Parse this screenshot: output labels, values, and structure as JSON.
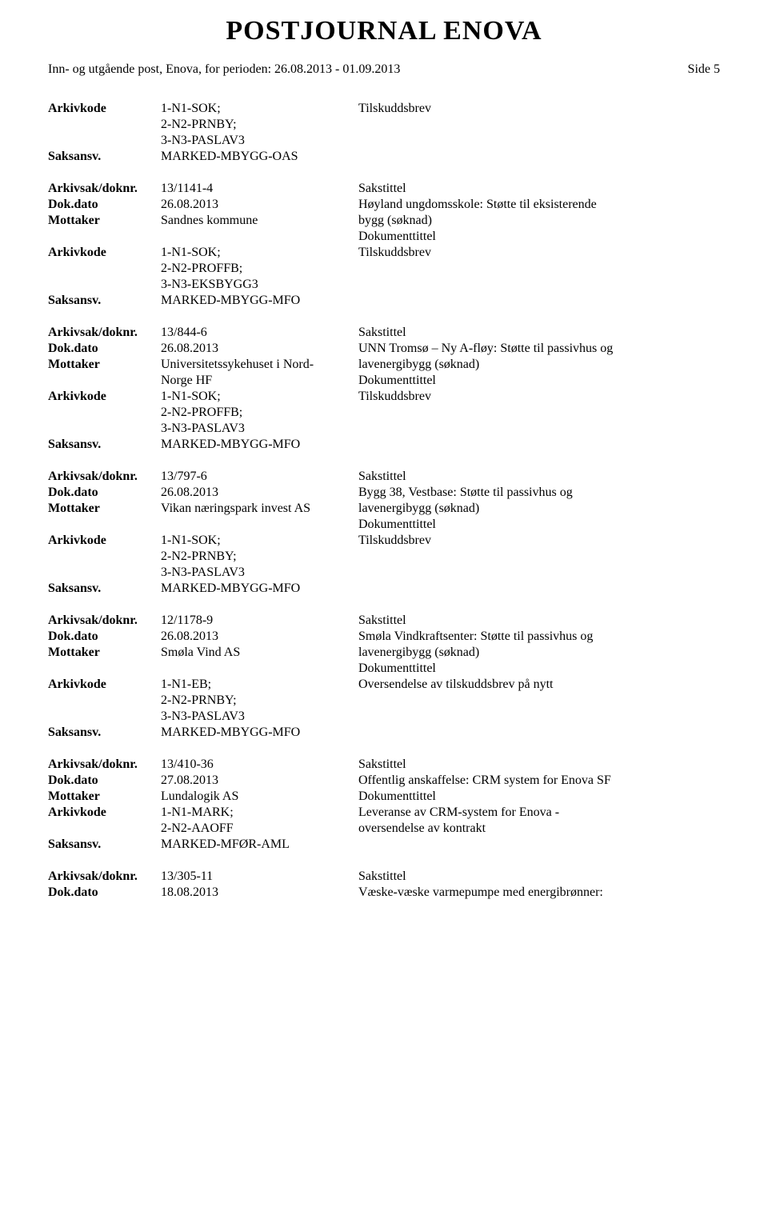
{
  "page_header": "POSTJOURNAL ENOVA",
  "period_line": "Inn- og utgående post, Enova, for perioden: 26.08.2013 - 01.09.2013",
  "side_label": "Side 5",
  "labels": {
    "arkivkode": "Arkivkode",
    "saksansv": "Saksansv.",
    "arkivsak": "Arkivsak/doknr.",
    "dokdato": "Dok.dato",
    "mottaker": "Mottaker",
    "sakstittel": "Sakstittel",
    "dokumenttittel": "Dokumenttittel"
  },
  "lead": {
    "arkivkode": "1-N1-SOK;\n2-N2-PRNBY;\n3-N3-PASLAV3",
    "doc_title": "Tilskuddsbrev",
    "saksansv": "MARKED-MBYGG-OAS"
  },
  "records": [
    {
      "arkivsak": "13/1141-4",
      "dokdato": "26.08.2013",
      "mottaker": "Sandnes kommune",
      "sakstittel_lines": [
        "Høyland ungdomsskole: Støtte til eksisterende",
        "bygg (søknad)"
      ],
      "arkivkode": "1-N1-SOK;\n2-N2-PROFFB;\n3-N3-EKSBYGG3",
      "doc_title": "Tilskuddsbrev",
      "saksansv": "MARKED-MBYGG-MFO"
    },
    {
      "arkivsak": "13/844-6",
      "dokdato": "26.08.2013",
      "mottaker": "Universitetssykehuset i Nord-\nNorge HF",
      "sakstittel_lines": [
        "UNN Tromsø – Ny A-fløy: Støtte til passivhus og",
        "lavenergibygg (søknad)"
      ],
      "arkivkode": "1-N1-SOK;\n2-N2-PROFFB;\n3-N3-PASLAV3",
      "doc_title": "Tilskuddsbrev",
      "saksansv": "MARKED-MBYGG-MFO"
    },
    {
      "arkivsak": "13/797-6",
      "dokdato": "26.08.2013",
      "mottaker": "Vikan næringspark invest AS",
      "sakstittel_lines": [
        "Bygg 38, Vestbase: Støtte til passivhus og",
        "lavenergibygg (søknad)"
      ],
      "arkivkode": "1-N1-SOK;\n2-N2-PRNBY;\n3-N3-PASLAV3",
      "doc_title": "Tilskuddsbrev",
      "saksansv": "MARKED-MBYGG-MFO"
    },
    {
      "arkivsak": "12/1178-9",
      "dokdato": "26.08.2013",
      "mottaker": "Smøla Vind AS",
      "sakstittel_lines": [
        "Smøla Vindkraftsenter: Støtte til passivhus og",
        "lavenergibygg (søknad)"
      ],
      "arkivkode": "1-N1-EB;\n2-N2-PRNBY;\n3-N3-PASLAV3",
      "doc_title": "Oversendelse av tilskuddsbrev på nytt",
      "saksansv": "MARKED-MBYGG-MFO"
    },
    {
      "arkivsak": "13/410-36",
      "dokdato": "27.08.2013",
      "mottaker": "Lundalogik AS",
      "sakstittel_lines": [
        "Offentlig anskaffelse: CRM system for Enova SF"
      ],
      "arkivkode": "1-N1-MARK;\n2-N2-AAOFF",
      "doc_title": "Leveranse av CRM-system for Enova -\noversendelse av kontrakt",
      "saksansv": "MARKED-MFØR-AML"
    }
  ],
  "tail": {
    "arkivsak": "13/305-11",
    "dokdato": "18.08.2013",
    "sakstittel_line": "Væske-væske varmepumpe med energibrønner:"
  }
}
